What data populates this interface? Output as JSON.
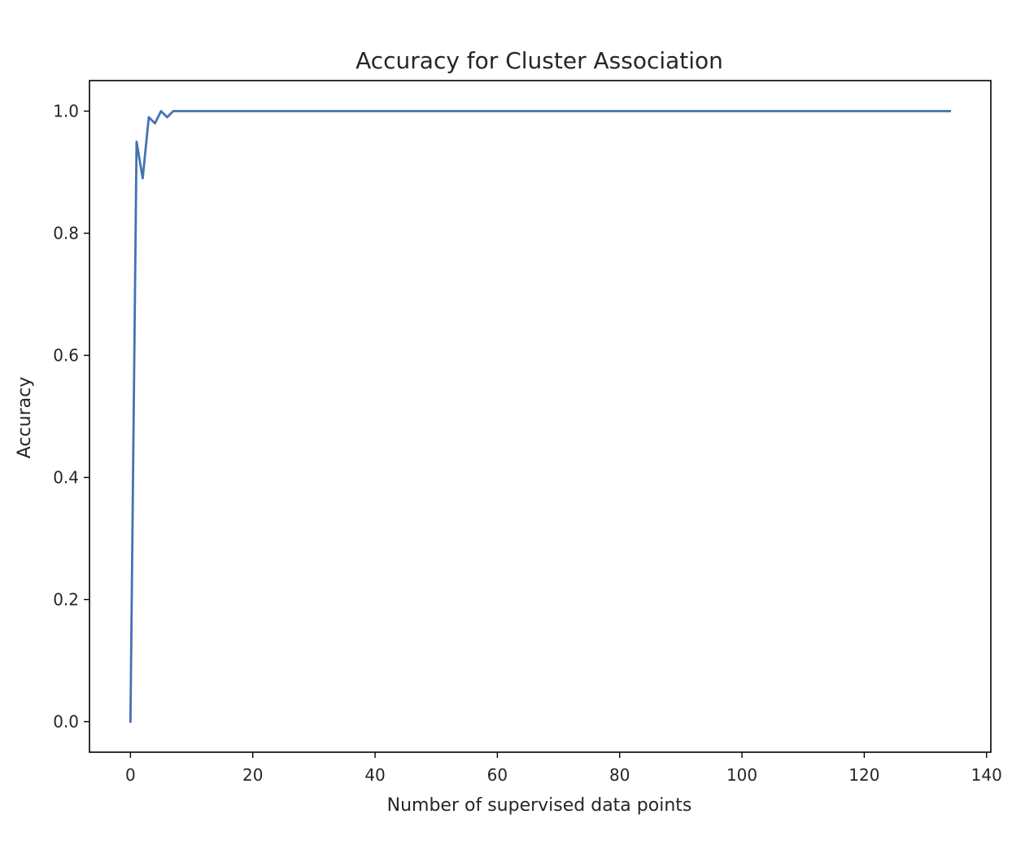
{
  "chart_data": {
    "type": "line",
    "title": "Accuracy for Cluster Association",
    "xlabel": "Number of supervised data points",
    "ylabel": "Accuracy",
    "xlim": [
      -6.7,
      140.7
    ],
    "ylim": [
      -0.05,
      1.05
    ],
    "xticks": [
      0,
      20,
      40,
      60,
      80,
      100,
      120,
      140
    ],
    "xtick_labels": [
      "0",
      "20",
      "40",
      "60",
      "80",
      "100",
      "120",
      "140"
    ],
    "yticks": [
      0.0,
      0.2,
      0.4,
      0.6,
      0.8,
      1.0
    ],
    "ytick_labels": [
      "0.0",
      "0.2",
      "0.4",
      "0.6",
      "0.8",
      "1.0"
    ],
    "grid": false,
    "legend": "none",
    "series": [
      {
        "color": "#4472b4",
        "x": [
          0,
          1,
          2,
          3,
          4,
          5,
          6,
          7,
          8,
          134
        ],
        "y": [
          0.0,
          0.95,
          0.89,
          0.99,
          0.98,
          1.0,
          0.99,
          1.0,
          1.0,
          1.0
        ]
      }
    ]
  }
}
